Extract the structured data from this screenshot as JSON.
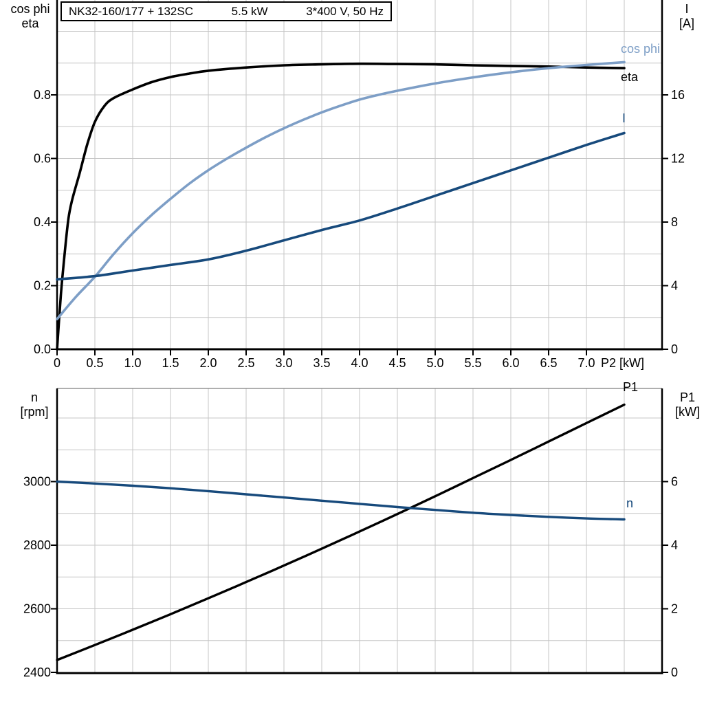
{
  "header": {
    "title_model": "NK32-160/177 + 132SC",
    "title_power": "5.5 kW",
    "title_voltage": "3*400 V, 50 Hz"
  },
  "colors": {
    "eta_black": "#000000",
    "cos_phi_blue": "#7d9ec6",
    "current_navy": "#174a7c",
    "grid_gray": "#c5c5c5",
    "frame_gray": "#7f7f7f"
  },
  "top_chart": {
    "left_axis_title_line1": "cos phi",
    "left_axis_title_line2": "eta",
    "right_axis_title_line1": "I",
    "right_axis_title_line2": "[A]",
    "x_axis_label": "P2 [kW]",
    "curve_labels": {
      "cos_phi": "cos phi",
      "eta": "eta",
      "current": "I"
    }
  },
  "bottom_chart": {
    "left_axis_title_line1": "n",
    "left_axis_title_line2": "[rpm]",
    "right_axis_title_line1": "P1",
    "right_axis_title_line2": "[kW]",
    "curve_labels": {
      "p1": "P1",
      "n": "n"
    }
  },
  "chart_data": [
    {
      "type": "line",
      "title": "NK32-160/177 + 132SC  5.5 kW  3*400 V, 50 Hz",
      "xlabel": "P2 [kW]",
      "x_ticks": [
        [
          "0",
          0
        ],
        [
          "0.5",
          0.5
        ],
        [
          "1.0",
          1
        ],
        [
          "1.5",
          1.5
        ],
        [
          "2.0",
          2
        ],
        [
          "2.5",
          2.5
        ],
        [
          "3.0",
          3
        ],
        [
          "3.5",
          3.5
        ],
        [
          "4.0",
          4
        ],
        [
          "4.5",
          4.5
        ],
        [
          "5.0",
          5
        ],
        [
          "5.5",
          5.5
        ],
        [
          "6.0",
          6
        ],
        [
          "6.5",
          6.5
        ],
        [
          "7.0",
          7
        ]
      ],
      "x_range": [
        0,
        8
      ],
      "left_axis": {
        "label": "cos phi / eta",
        "ticks": [
          [
            "0.0",
            0
          ],
          [
            "0.2",
            0.2
          ],
          [
            "0.4",
            0.4
          ],
          [
            "0.6",
            0.6
          ],
          [
            "0.8",
            0.8
          ]
        ],
        "range": [
          0,
          1.1
        ]
      },
      "right_axis": {
        "label": "I [A]",
        "ticks": [
          [
            "0",
            0
          ],
          [
            "4",
            4
          ],
          [
            "8",
            8
          ],
          [
            "12",
            12
          ],
          [
            "16",
            16
          ]
        ],
        "range": [
          0,
          22
        ]
      },
      "grid": true,
      "legend_position": "right-inline",
      "series": [
        {
          "name": "eta",
          "axis": "left",
          "color": "#000000",
          "points": [
            [
              0,
              0
            ],
            [
              0.05,
              0.17
            ],
            [
              0.1,
              0.3
            ],
            [
              0.15,
              0.41
            ],
            [
              0.2,
              0.47
            ],
            [
              0.3,
              0.555
            ],
            [
              0.4,
              0.645
            ],
            [
              0.5,
              0.715
            ],
            [
              0.625,
              0.765
            ],
            [
              0.75,
              0.79
            ],
            [
              1.0,
              0.817
            ],
            [
              1.25,
              0.84
            ],
            [
              1.5,
              0.856
            ],
            [
              1.75,
              0.867
            ],
            [
              2.0,
              0.876
            ],
            [
              2.5,
              0.886
            ],
            [
              3.0,
              0.893
            ],
            [
              3.5,
              0.896
            ],
            [
              4.0,
              0.898
            ],
            [
              4.5,
              0.897
            ],
            [
              5.0,
              0.896
            ],
            [
              5.5,
              0.893
            ],
            [
              6.0,
              0.891
            ],
            [
              6.5,
              0.889
            ],
            [
              7.0,
              0.886
            ],
            [
              7.5,
              0.884
            ]
          ]
        },
        {
          "name": "cos phi",
          "axis": "left",
          "color": "#7d9ec6",
          "points": [
            [
              0,
              0.095
            ],
            [
              0.25,
              0.165
            ],
            [
              0.5,
              0.228
            ],
            [
              0.75,
              0.3
            ],
            [
              1.0,
              0.365
            ],
            [
              1.25,
              0.422
            ],
            [
              1.5,
              0.473
            ],
            [
              1.75,
              0.521
            ],
            [
              2.0,
              0.563
            ],
            [
              2.25,
              0.6
            ],
            [
              2.5,
              0.634
            ],
            [
              2.75,
              0.666
            ],
            [
              3.0,
              0.695
            ],
            [
              3.25,
              0.721
            ],
            [
              3.5,
              0.745
            ],
            [
              3.75,
              0.766
            ],
            [
              4.0,
              0.785
            ],
            [
              4.25,
              0.8
            ],
            [
              4.5,
              0.813
            ],
            [
              5.0,
              0.836
            ],
            [
              5.5,
              0.855
            ],
            [
              6.0,
              0.871
            ],
            [
              6.5,
              0.884
            ],
            [
              7.0,
              0.894
            ],
            [
              7.5,
              0.903
            ]
          ]
        },
        {
          "name": "I",
          "axis": "right",
          "color": "#174a7c",
          "points": [
            [
              0,
              4.4
            ],
            [
              0.5,
              4.6
            ],
            [
              1.0,
              4.95
            ],
            [
              1.5,
              5.3
            ],
            [
              2.0,
              5.65
            ],
            [
              2.5,
              6.2
            ],
            [
              3.0,
              6.85
            ],
            [
              3.5,
              7.5
            ],
            [
              4.0,
              8.1
            ],
            [
              4.5,
              8.85
            ],
            [
              5.0,
              9.65
            ],
            [
              5.5,
              10.45
            ],
            [
              6.0,
              11.25
            ],
            [
              6.5,
              12.05
            ],
            [
              7.0,
              12.85
            ],
            [
              7.5,
              13.6
            ]
          ]
        }
      ]
    },
    {
      "type": "line",
      "title": "",
      "xlabel": "",
      "x_range": [
        0,
        8
      ],
      "left_axis": {
        "label": "n [rpm]",
        "ticks": [
          [
            "2400",
            2400
          ],
          [
            "2600",
            2600
          ],
          [
            "2800",
            2800
          ],
          [
            "3000",
            3000
          ]
        ],
        "range": [
          2400,
          3295
        ]
      },
      "right_axis": {
        "label": "P1 [kW]",
        "ticks": [
          [
            "0",
            0
          ],
          [
            "2",
            2
          ],
          [
            "4",
            4
          ],
          [
            "6",
            6
          ]
        ],
        "range": [
          0,
          8.95
        ]
      },
      "grid": true,
      "legend_position": "right-inline",
      "series": [
        {
          "name": "P1",
          "axis": "right",
          "color": "#000000",
          "points": [
            [
              0,
              0.39
            ],
            [
              0.5,
              0.86
            ],
            [
              1.0,
              1.34
            ],
            [
              1.5,
              1.83
            ],
            [
              2.0,
              2.33
            ],
            [
              2.5,
              2.84
            ],
            [
              3.0,
              3.36
            ],
            [
              3.5,
              3.89
            ],
            [
              4.0,
              4.43
            ],
            [
              4.5,
              4.98
            ],
            [
              5.0,
              5.54
            ],
            [
              5.5,
              6.11
            ],
            [
              6.0,
              6.68
            ],
            [
              6.5,
              7.26
            ],
            [
              7.0,
              7.84
            ],
            [
              7.5,
              8.42
            ]
          ]
        },
        {
          "name": "n",
          "axis": "left",
          "color": "#174a7c",
          "points": [
            [
              0,
              3000
            ],
            [
              0.5,
              2994
            ],
            [
              1.0,
              2987
            ],
            [
              1.5,
              2979
            ],
            [
              2.0,
              2970
            ],
            [
              2.5,
              2960
            ],
            [
              3.0,
              2950
            ],
            [
              3.5,
              2940
            ],
            [
              4.0,
              2930
            ],
            [
              4.5,
              2920
            ],
            [
              5.0,
              2911
            ],
            [
              5.5,
              2902
            ],
            [
              6.0,
              2895
            ],
            [
              6.5,
              2889
            ],
            [
              7.0,
              2884
            ],
            [
              7.5,
              2881
            ]
          ]
        }
      ]
    }
  ]
}
